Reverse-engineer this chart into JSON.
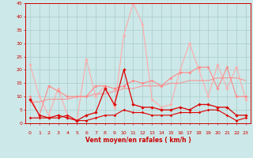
{
  "x": [
    0,
    1,
    2,
    3,
    4,
    5,
    6,
    7,
    8,
    9,
    10,
    11,
    12,
    13,
    14,
    15,
    16,
    17,
    18,
    19,
    20,
    21,
    22,
    23
  ],
  "rafales": [
    22,
    10,
    3,
    13,
    3,
    1,
    24,
    10,
    14,
    6,
    33,
    45,
    37,
    9,
    6,
    7,
    20,
    30,
    20,
    10,
    22,
    13,
    21,
    9
  ],
  "moyenne_haute": [
    10,
    3,
    14,
    12,
    10,
    10,
    10,
    14,
    14,
    13,
    14,
    16,
    15,
    16,
    14,
    17,
    19,
    19,
    21,
    21,
    13,
    21,
    10,
    10
  ],
  "trend": [
    8,
    8,
    9,
    9,
    9,
    10,
    10,
    11,
    11,
    12,
    13,
    13,
    14,
    14,
    14,
    15,
    15,
    16,
    16,
    16,
    17,
    17,
    17,
    16
  ],
  "vent_moyen": [
    9,
    3,
    2,
    3,
    2,
    1,
    3,
    4,
    13,
    7,
    20,
    7,
    6,
    6,
    5,
    5,
    6,
    5,
    7,
    7,
    6,
    6,
    3,
    3
  ],
  "vent_bas": [
    2,
    2,
    2,
    2,
    3,
    1,
    1,
    2,
    3,
    3,
    5,
    4,
    4,
    3,
    3,
    3,
    4,
    4,
    4,
    5,
    5,
    3,
    1,
    2
  ],
  "vent_plancher": [
    0,
    0,
    0,
    0,
    0,
    0,
    0,
    0,
    0,
    0,
    0,
    0,
    0,
    0,
    0,
    0,
    0,
    0,
    0,
    0,
    0,
    0,
    0,
    0
  ],
  "background_color": "#cce8e8",
  "grid_color": "#aacccc",
  "color_rafales": "#ffaaaa",
  "color_moyenne": "#ff8888",
  "color_trend": "#ff8888",
  "color_vent": "#dd0000",
  "color_bas": "#dd0000",
  "xlabel": "Vent moyen/en rafales ( km/h )",
  "ylim": [
    0,
    45
  ],
  "yticks": [
    0,
    5,
    10,
    15,
    20,
    25,
    30,
    35,
    40,
    45
  ],
  "xticks": [
    0,
    1,
    2,
    3,
    4,
    5,
    6,
    7,
    8,
    9,
    10,
    11,
    12,
    13,
    14,
    15,
    16,
    17,
    18,
    19,
    20,
    21,
    22,
    23
  ],
  "wind_dirs": [
    "↖",
    "↗",
    "↖",
    "↙",
    "↓",
    "↓",
    "↑",
    "↖",
    "↑",
    "↙",
    "↓",
    "↗",
    "↑",
    "↑",
    "↓",
    "↓",
    "↘",
    "↓",
    "↓",
    "↓",
    "↑",
    "↓",
    "↓",
    "↘"
  ]
}
